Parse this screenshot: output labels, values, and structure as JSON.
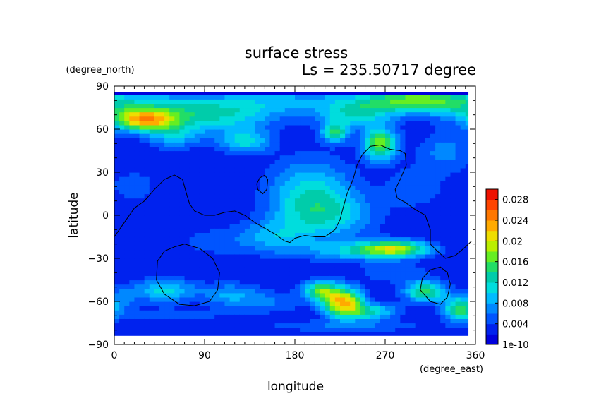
{
  "chart_data": {
    "type": "heatmap",
    "title": "surface stress",
    "subtitle": "Ls = 235.50717 degree",
    "xlabel": "longitude",
    "ylabel": "latitude",
    "x_units": "(degree_east)",
    "y_units": "(degree_north)",
    "xlim": [
      0,
      360
    ],
    "ylim": [
      -90,
      90
    ],
    "xticks": [
      0,
      90,
      180,
      270,
      360
    ],
    "yticks": [
      90,
      60,
      30,
      0,
      -30,
      -60,
      -90
    ],
    "colorbar": {
      "labels": [
        "0.028",
        "0.024",
        "0.02",
        "0.016",
        "0.012",
        "0.008",
        "0.004",
        "1e-10"
      ],
      "label_values": [
        0.028,
        0.024,
        0.02,
        0.016,
        0.012,
        0.008,
        0.004,
        0
      ],
      "min": 0,
      "max": 0.03,
      "colors": [
        "#0000dd",
        "#0022ee",
        "#0055ff",
        "#0088ff",
        "#00bbff",
        "#00dddd",
        "#00ccaa",
        "#22dd66",
        "#66ee22",
        "#bbee00",
        "#eedd00",
        "#ffaa00",
        "#ff7700",
        "#ff4400",
        "#ee1100"
      ]
    },
    "grid": false,
    "background_value": 0.002,
    "features": [
      {
        "lon": 30,
        "lat": 66,
        "value": 0.019,
        "sx": 22,
        "sy": 5
      },
      {
        "lon": 20,
        "lat": 75,
        "value": 0.01,
        "sx": 40,
        "sy": 8
      },
      {
        "lon": 100,
        "lat": 70,
        "value": 0.012,
        "sx": 45,
        "sy": 8
      },
      {
        "lon": 175,
        "lat": 80,
        "value": 0.008,
        "sx": 60,
        "sy": 6
      },
      {
        "lon": 300,
        "lat": 80,
        "value": 0.017,
        "sx": 40,
        "sy": 6
      },
      {
        "lon": 240,
        "lat": 70,
        "value": 0.011,
        "sx": 25,
        "sy": 6
      },
      {
        "lon": 220,
        "lat": 58,
        "value": 0.014,
        "sx": 10,
        "sy": 5
      },
      {
        "lon": 265,
        "lat": 50,
        "value": 0.018,
        "sx": 12,
        "sy": 8
      },
      {
        "lon": 130,
        "lat": 52,
        "value": 0.011,
        "sx": 18,
        "sy": 6
      },
      {
        "lon": 60,
        "lat": 55,
        "value": 0.009,
        "sx": 20,
        "sy": 6
      },
      {
        "lon": 330,
        "lat": 45,
        "value": 0.007,
        "sx": 20,
        "sy": 10
      },
      {
        "lon": 195,
        "lat": 20,
        "value": 0.01,
        "sx": 30,
        "sy": 15
      },
      {
        "lon": 210,
        "lat": 0,
        "value": 0.011,
        "sx": 35,
        "sy": 12
      },
      {
        "lon": 160,
        "lat": -15,
        "value": 0.008,
        "sx": 25,
        "sy": 8
      },
      {
        "lon": 280,
        "lat": -23,
        "value": 0.017,
        "sx": 25,
        "sy": 4
      },
      {
        "lon": 240,
        "lat": -25,
        "value": 0.009,
        "sx": 40,
        "sy": 5
      },
      {
        "lon": 100,
        "lat": -18,
        "value": 0.005,
        "sx": 30,
        "sy": 8
      },
      {
        "lon": 50,
        "lat": -52,
        "value": 0.011,
        "sx": 22,
        "sy": 6
      },
      {
        "lon": 10,
        "lat": -58,
        "value": 0.006,
        "sx": 10,
        "sy": 6
      },
      {
        "lon": 115,
        "lat": -55,
        "value": 0.008,
        "sx": 20,
        "sy": 6
      },
      {
        "lon": 155,
        "lat": -60,
        "value": 0.006,
        "sx": 25,
        "sy": 6
      },
      {
        "lon": 228,
        "lat": -60,
        "value": 0.023,
        "sx": 14,
        "sy": 7
      },
      {
        "lon": 205,
        "lat": -52,
        "value": 0.015,
        "sx": 12,
        "sy": 5
      },
      {
        "lon": 255,
        "lat": -67,
        "value": 0.012,
        "sx": 20,
        "sy": 4
      },
      {
        "lon": 310,
        "lat": -53,
        "value": 0.016,
        "sx": 15,
        "sy": 5
      },
      {
        "lon": 345,
        "lat": -65,
        "value": 0.016,
        "sx": 12,
        "sy": 6
      },
      {
        "lon": 230,
        "lat": -77,
        "value": 0.006,
        "sx": 60,
        "sy": 3
      },
      {
        "lon": 60,
        "lat": -70,
        "value": 0.005,
        "sx": 40,
        "sy": 4
      },
      {
        "lon": 300,
        "lat": 20,
        "value": 0.006,
        "sx": 20,
        "sy": 10
      },
      {
        "lon": 20,
        "lat": 20,
        "value": 0.005,
        "sx": 20,
        "sy": 10
      },
      {
        "lon": 280,
        "lat": -40,
        "value": 0.006,
        "sx": 25,
        "sy": 5
      }
    ],
    "contours": [
      {
        "name": "topography-contour-1",
        "closed": false,
        "points": [
          [
            0,
            -15
          ],
          [
            10,
            -5
          ],
          [
            20,
            5
          ],
          [
            30,
            10
          ],
          [
            40,
            18
          ],
          [
            50,
            25
          ],
          [
            60,
            28
          ],
          [
            68,
            25
          ],
          [
            72,
            15
          ],
          [
            75,
            8
          ],
          [
            80,
            3
          ],
          [
            90,
            0
          ],
          [
            100,
            0
          ],
          [
            110,
            2
          ],
          [
            120,
            3
          ],
          [
            130,
            0
          ],
          [
            140,
            -5
          ],
          [
            150,
            -9
          ],
          [
            160,
            -13
          ],
          [
            170,
            -18
          ],
          [
            175,
            -19
          ],
          [
            180,
            -16
          ],
          [
            190,
            -14
          ],
          [
            200,
            -15
          ],
          [
            210,
            -15
          ],
          [
            220,
            -10
          ],
          [
            225,
            -3
          ],
          [
            228,
            5
          ],
          [
            232,
            15
          ],
          [
            238,
            25
          ],
          [
            242,
            35
          ],
          [
            247,
            42
          ],
          [
            255,
            48
          ],
          [
            265,
            49
          ],
          [
            275,
            46
          ],
          [
            285,
            45
          ],
          [
            290,
            43
          ],
          [
            291,
            35
          ],
          [
            285,
            25
          ],
          [
            280,
            18
          ],
          [
            282,
            12
          ],
          [
            290,
            9
          ],
          [
            300,
            4
          ],
          [
            310,
            0
          ],
          [
            315,
            -10
          ],
          [
            315,
            -20
          ],
          [
            322,
            -25
          ],
          [
            330,
            -30
          ],
          [
            340,
            -28
          ],
          [
            350,
            -22
          ],
          [
            356,
            -18
          ]
        ]
      },
      {
        "name": "topography-contour-2",
        "closed": true,
        "points": [
          [
            145,
            26
          ],
          [
            150,
            28
          ],
          [
            153,
            25
          ],
          [
            152,
            18
          ],
          [
            148,
            15
          ],
          [
            143,
            18
          ],
          [
            142,
            22
          ]
        ]
      },
      {
        "name": "topography-contour-3",
        "closed": true,
        "points": [
          [
            70,
            -20
          ],
          [
            85,
            -23
          ],
          [
            98,
            -30
          ],
          [
            105,
            -40
          ],
          [
            103,
            -52
          ],
          [
            95,
            -60
          ],
          [
            80,
            -63
          ],
          [
            65,
            -62
          ],
          [
            50,
            -55
          ],
          [
            42,
            -45
          ],
          [
            43,
            -32
          ],
          [
            50,
            -25
          ],
          [
            60,
            -22
          ]
        ]
      },
      {
        "name": "topography-contour-4",
        "closed": true,
        "points": [
          [
            325,
            -36
          ],
          [
            332,
            -40
          ],
          [
            335,
            -48
          ],
          [
            332,
            -57
          ],
          [
            325,
            -62
          ],
          [
            315,
            -60
          ],
          [
            305,
            -52
          ],
          [
            307,
            -44
          ],
          [
            315,
            -38
          ]
        ]
      }
    ]
  }
}
